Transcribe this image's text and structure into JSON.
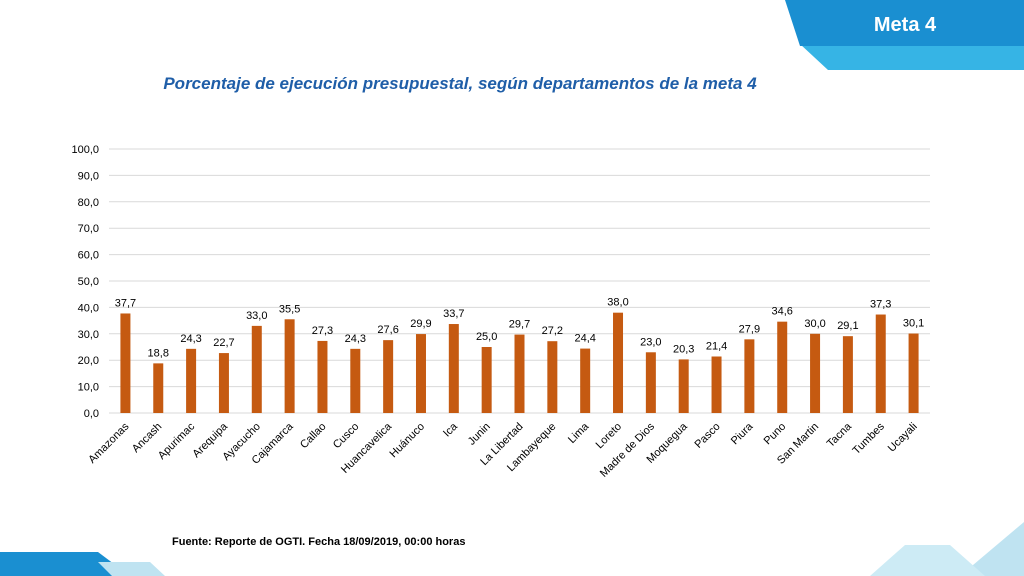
{
  "header": {
    "badge": "Meta 4"
  },
  "footer": {
    "source": "Fuente: Reporte de OGTI. Fecha 18/09/2019, 00:00 horas"
  },
  "colors": {
    "bar": "#c55a11",
    "title": "#1f5ea8",
    "accent_blue": "#1a8fd1",
    "light_blue": "#36b4e5",
    "pale_blue": "#bfe3f1"
  },
  "chart_data": {
    "type": "bar",
    "title": "Porcentaje de ejecución presupuestal, según departamentos de la meta 4",
    "xlabel": "",
    "ylabel": "",
    "ylim": [
      0,
      100
    ],
    "yticks": [
      "0,0",
      "10,0",
      "20,0",
      "30,0",
      "40,0",
      "50,0",
      "60,0",
      "70,0",
      "80,0",
      "90,0",
      "100,0"
    ],
    "grid": true,
    "categories": [
      "Amazonas",
      "Ancash",
      "Apurimac",
      "Arequipa",
      "Ayacucho",
      "Cajamarca",
      "Callao",
      "Cusco",
      "Huancavelica",
      "Huánuco",
      "Ica",
      "Junin",
      "La Libertad",
      "Lambayeque",
      "Lima",
      "Loreto",
      "Madre de Dios",
      "Moquegua",
      "Pasco",
      "Piura",
      "Puno",
      "San Martin",
      "Tacna",
      "Tumbes",
      "Ucayali"
    ],
    "values": [
      37.7,
      18.8,
      24.3,
      22.7,
      33.0,
      35.5,
      27.3,
      24.3,
      27.6,
      29.9,
      33.7,
      25.0,
      29.7,
      27.2,
      24.4,
      38.0,
      23.0,
      20.3,
      21.4,
      27.9,
      34.6,
      30.0,
      29.1,
      37.3,
      30.1
    ],
    "labels": [
      "37,7",
      "18,8",
      "24,3",
      "22,7",
      "33,0",
      "35,5",
      "27,3",
      "24,3",
      "27,6",
      "29,9",
      "33,7",
      "25,0",
      "29,7",
      "27,2",
      "24,4",
      "38,0",
      "23,0",
      "20,3",
      "21,4",
      "27,9",
      "34,6",
      "30,0",
      "29,1",
      "37,3",
      "30,1"
    ]
  }
}
